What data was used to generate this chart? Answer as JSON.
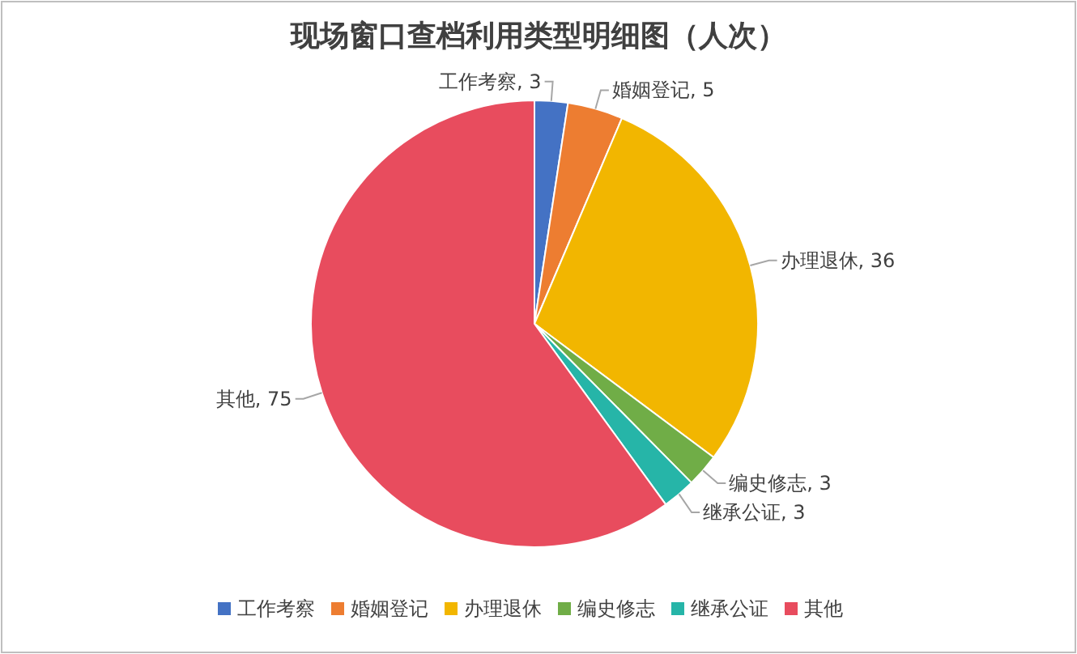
{
  "chart_data": {
    "type": "pie",
    "title": "现场窗口查档利用类型明细图（人次）",
    "categories": [
      "工作考察",
      "婚姻登记",
      "办理退休",
      "编史修志",
      "继承公证",
      "其他"
    ],
    "values": [
      3,
      5,
      36,
      3,
      3,
      75
    ],
    "value_labels": [
      "工作考察, 3",
      "婚姻登记, 5",
      "办理退休, 36",
      "编史修志, 3",
      "继承公证, 3",
      "其他, 75"
    ],
    "colors": [
      "#4472c4",
      "#ed7d31",
      "#f2b600",
      "#70ad47",
      "#26b5a8",
      "#e84c5e"
    ],
    "legend": "bottom"
  }
}
